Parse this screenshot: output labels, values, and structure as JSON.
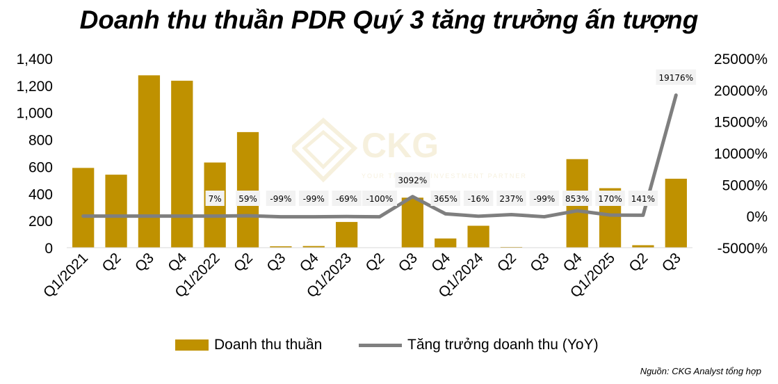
{
  "chart_data": {
    "type": "bar+line",
    "title": "Doanh thu thuần PDR Quý 3 tăng trưởng ấn tượng",
    "categories": [
      "Q1/2021",
      "Q2",
      "Q3",
      "Q4",
      "Q1/2022",
      "Q2",
      "Q3",
      "Q4",
      "Q1/2023",
      "Q2",
      "Q3",
      "Q4",
      "Q1/2024",
      "Q2",
      "Q3",
      "Q4",
      "Q1/2025",
      "Q2",
      "Q3"
    ],
    "series": [
      {
        "name": "Doanh thu thuần",
        "type": "bar",
        "axis": "left",
        "color": "#BF9100",
        "values": [
          590,
          540,
          1275,
          1235,
          630,
          855,
          10,
          12,
          190,
          0,
          370,
          68,
          162,
          5,
          0,
          655,
          440,
          18,
          510
        ]
      },
      {
        "name": "Tăng trưởng doanh thu (YoY)",
        "type": "line",
        "axis": "right",
        "color": "#7F7F7F",
        "values": [
          0,
          0,
          0,
          0,
          7,
          59,
          -99,
          -99,
          -69,
          -100,
          3092,
          365,
          -16,
          237,
          -99,
          853,
          170,
          141,
          19176
        ],
        "labels": [
          null,
          null,
          null,
          null,
          "7%",
          "59%",
          "-99%",
          "-99%",
          "-69%",
          "-100%",
          "3092%",
          "365%",
          "-16%",
          "237%",
          "-99%",
          "853%",
          "170%",
          "141%",
          "19176%"
        ]
      }
    ],
    "y_left": {
      "min": 0,
      "max": 1400,
      "ticks": [
        "0",
        "200",
        "400",
        "600",
        "800",
        "1,000",
        "1,200",
        "1,400"
      ]
    },
    "y_right": {
      "min": -5000,
      "max": 25000,
      "ticks": [
        "-5000%",
        "0%",
        "5000%",
        "10000%",
        "15000%",
        "20000%",
        "25000%"
      ]
    },
    "legend_position": "bottom",
    "grid": false
  },
  "legend": {
    "bar_label": "Doanh thu thuần",
    "line_label": "Tăng trưởng doanh thu (YoY)"
  },
  "source": "Nguồn: CKG Analyst tổng hợp",
  "watermark": {
    "brand": "CKG",
    "tagline": "YOUR TRUSTED INVESTMENT PARTNER"
  }
}
